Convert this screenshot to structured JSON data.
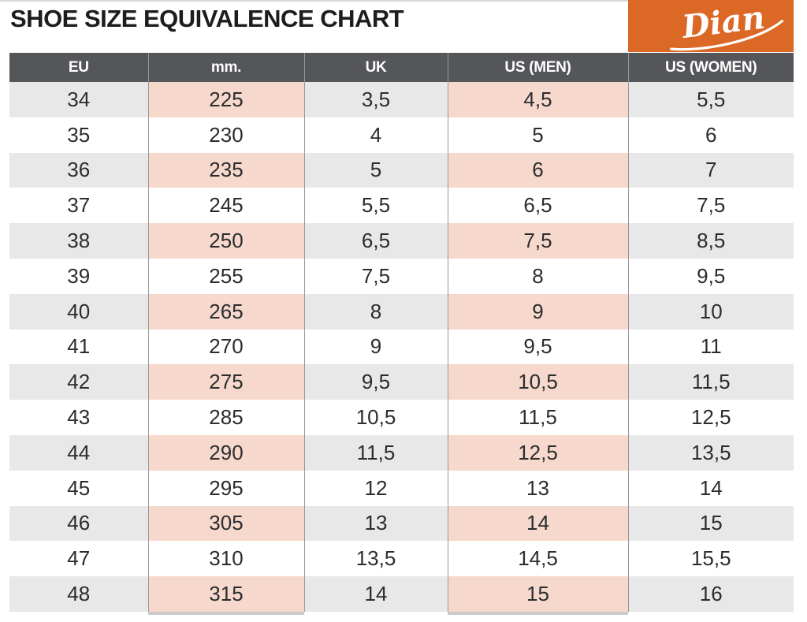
{
  "page_title": "SHOE SIZE EQUIVALENCE CHART",
  "logo": {
    "text": "Dian"
  },
  "colors": {
    "accent": "#DC6825",
    "header_bg": "#54565A",
    "band_gray": "#E8E8E9",
    "band_pink": "#F6D9CC",
    "divider": "#97979A",
    "cell_text": "#2C2C2E",
    "title_text": "#1D1D1F",
    "shadow": "#CBCBCB"
  },
  "chart_data": {
    "type": "table",
    "title": "SHOE SIZE EQUIVALENCE CHART",
    "columns": [
      "EU",
      "mm.",
      "UK",
      "US (MEN)",
      "US (WOMEN)"
    ],
    "column_keys": [
      "eu",
      "mm",
      "uk",
      "us-men",
      "us-women"
    ],
    "highlight_column_indices": [
      1,
      3
    ],
    "banded_row_indices": [
      0,
      2,
      4,
      6,
      8,
      10,
      12,
      14
    ],
    "rows": [
      [
        "34",
        "225",
        "3,5",
        "4,5",
        "5,5"
      ],
      [
        "35",
        "230",
        "4",
        "5",
        "6"
      ],
      [
        "36",
        "235",
        "5",
        "6",
        "7"
      ],
      [
        "37",
        "245",
        "5,5",
        "6,5",
        "7,5"
      ],
      [
        "38",
        "250",
        "6,5",
        "7,5",
        "8,5"
      ],
      [
        "39",
        "255",
        "7,5",
        "8",
        "9,5"
      ],
      [
        "40",
        "265",
        "8",
        "9",
        "10"
      ],
      [
        "41",
        "270",
        "9",
        "9,5",
        "11"
      ],
      [
        "42",
        "275",
        "9,5",
        "10,5",
        "11,5"
      ],
      [
        "43",
        "285",
        "10,5",
        "11,5",
        "12,5"
      ],
      [
        "44",
        "290",
        "11,5",
        "12,5",
        "13,5"
      ],
      [
        "45",
        "295",
        "12",
        "13",
        "14"
      ],
      [
        "46",
        "305",
        "13",
        "14",
        "15"
      ],
      [
        "47",
        "310",
        "13,5",
        "14,5",
        "15,5"
      ],
      [
        "48",
        "315",
        "14",
        "15",
        "16"
      ]
    ]
  }
}
